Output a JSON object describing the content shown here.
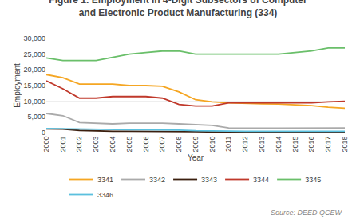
{
  "chart_data": {
    "type": "line",
    "title": "Figure 1. Employment in 4-Digit Subsectors of Computer\nand Electronic Product Manufacturing (334)",
    "xlabel": "Year",
    "ylabel": "Employment",
    "annotations": [
      "Source: DEED QCEW"
    ],
    "x": [
      2000,
      2001,
      2002,
      2003,
      2004,
      2005,
      2006,
      2007,
      2008,
      2009,
      2010,
      2011,
      2012,
      2013,
      2014,
      2015,
      2016,
      2017,
      2018
    ],
    "series": [
      {
        "name": "3341",
        "color": "#F5A623",
        "values": [
          18500,
          17500,
          15500,
          15500,
          15500,
          15000,
          15000,
          14800,
          13000,
          10500,
          9800,
          9500,
          9300,
          9200,
          9100,
          8900,
          8600,
          8100,
          7800
        ]
      },
      {
        "name": "3342",
        "color": "#AAAAAA",
        "values": [
          6100,
          5400,
          3200,
          3000,
          2800,
          3000,
          3000,
          3000,
          2800,
          2500,
          2300,
          1500,
          1400,
          1400,
          1400,
          1400,
          1400,
          1400,
          1500
        ]
      },
      {
        "name": "3343",
        "color": "#3B1F0F",
        "values": [
          1200,
          1100,
          700,
          500,
          400,
          400,
          400,
          400,
          400,
          300,
          200,
          200,
          200,
          200,
          200,
          200,
          200,
          200,
          200
        ]
      },
      {
        "name": "3344",
        "color": "#C0392B",
        "values": [
          16500,
          14000,
          11000,
          11000,
          11500,
          11500,
          11500,
          11000,
          9000,
          8500,
          8500,
          9500,
          9500,
          9500,
          9500,
          9500,
          9500,
          9800,
          10000
        ]
      },
      {
        "name": "3345",
        "color": "#6ABF6A",
        "values": [
          23800,
          23000,
          23000,
          23000,
          24000,
          25000,
          25500,
          26000,
          26000,
          25000,
          25000,
          25000,
          25000,
          25000,
          25000,
          25500,
          26000,
          27000,
          27000
        ]
      },
      {
        "name": "3346",
        "color": "#5BC0DE",
        "values": [
          1300,
          1200,
          1200,
          1000,
          1000,
          900,
          900,
          900,
          800,
          600,
          500,
          500,
          400,
          400,
          400,
          400,
          400,
          400,
          400
        ]
      }
    ],
    "xlim": [
      2000,
      2018
    ],
    "xticks": [
      2000,
      2001,
      2002,
      2003,
      2004,
      2005,
      2006,
      2007,
      2008,
      2009,
      2010,
      2011,
      2012,
      2013,
      2014,
      2015,
      2016,
      2017,
      2018
    ],
    "ylim": [
      0,
      30000
    ],
    "yticks": [
      0,
      {
        "value": 5000,
        "label": "5,000"
      },
      {
        "value": 10000,
        "label": "10,000"
      },
      {
        "value": 15000,
        "label": "15,000"
      },
      {
        "value": 20000,
        "label": "20,000"
      },
      {
        "value": 25000,
        "label": "25,000"
      },
      {
        "value": 30000,
        "label": "30,000"
      }
    ],
    "grid": "y",
    "legend": "bottom"
  }
}
